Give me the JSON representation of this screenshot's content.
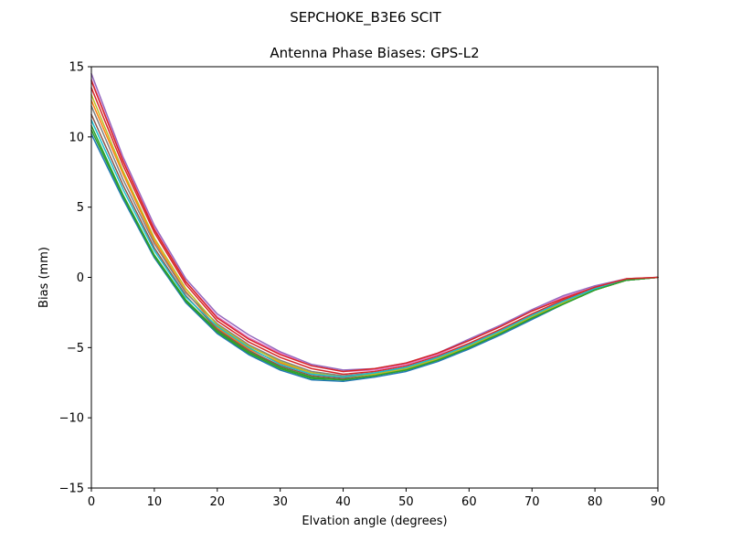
{
  "figure": {
    "suptitle": "SEPCHOKE_B3E6   SCIT"
  },
  "chart_data": {
    "type": "line",
    "title": "Antenna Phase Biases: GPS-L2",
    "xlabel": "Elvation angle (degrees)",
    "ylabel": "Bias (mm)",
    "xlim": [
      0,
      90
    ],
    "ylim": [
      -15,
      15
    ],
    "xticks": [
      0,
      10,
      20,
      30,
      40,
      50,
      60,
      70,
      80,
      90
    ],
    "yticks": [
      -15,
      -10,
      -5,
      0,
      5,
      10,
      15
    ],
    "xtick_labels": [
      "0",
      "10",
      "20",
      "30",
      "40",
      "50",
      "60",
      "70",
      "80",
      "90"
    ],
    "ytick_labels": [
      "−15",
      "−10",
      "−5",
      "0",
      "5",
      "10",
      "15"
    ],
    "grid": false,
    "legend": "none",
    "series_count_note_visible": false,
    "x": [
      0,
      5,
      10,
      15,
      20,
      25,
      30,
      35,
      40,
      45,
      50,
      55,
      60,
      65,
      70,
      75,
      80,
      85,
      90
    ],
    "series": [
      {
        "color": "#1f77b4",
        "values": [
          10.2,
          5.6,
          1.4,
          -1.8,
          -4.0,
          -5.5,
          -6.6,
          -7.3,
          -7.4,
          -7.1,
          -6.7,
          -6.0,
          -5.1,
          -4.1,
          -3.0,
          -1.9,
          -0.9,
          -0.2,
          0.0
        ]
      },
      {
        "color": "#ff7f0e",
        "values": [
          12.6,
          7.4,
          2.6,
          -1.0,
          -3.6,
          -5.1,
          -6.1,
          -6.8,
          -7.1,
          -6.9,
          -6.5,
          -5.8,
          -4.9,
          -3.9,
          -2.8,
          -1.8,
          -0.9,
          -0.2,
          0.0
        ]
      },
      {
        "color": "#2ca02c",
        "values": [
          10.8,
          5.9,
          1.6,
          -1.6,
          -3.8,
          -5.3,
          -6.4,
          -7.1,
          -7.3,
          -7.0,
          -6.6,
          -5.9,
          -5.0,
          -4.0,
          -2.9,
          -1.9,
          -0.9,
          -0.2,
          0.0
        ]
      },
      {
        "color": "#d62728",
        "values": [
          13.5,
          8.0,
          3.2,
          -0.5,
          -3.1,
          -4.6,
          -5.7,
          -6.5,
          -6.9,
          -6.7,
          -6.3,
          -5.6,
          -4.7,
          -3.7,
          -2.6,
          -1.6,
          -0.8,
          -0.2,
          0.0
        ]
      },
      {
        "color": "#9467bd",
        "values": [
          14.5,
          8.6,
          3.7,
          -0.1,
          -2.6,
          -4.1,
          -5.3,
          -6.2,
          -6.6,
          -6.5,
          -6.1,
          -5.4,
          -4.4,
          -3.4,
          -2.3,
          -1.3,
          -0.6,
          -0.1,
          0.0
        ]
      },
      {
        "color": "#8c564b",
        "values": [
          11.6,
          6.6,
          2.1,
          -1.3,
          -3.7,
          -5.2,
          -6.3,
          -7.0,
          -7.2,
          -6.9,
          -6.5,
          -5.8,
          -4.9,
          -3.9,
          -2.8,
          -1.8,
          -0.9,
          -0.2,
          0.0
        ]
      },
      {
        "color": "#e377c2",
        "values": [
          14.1,
          8.4,
          3.5,
          -0.3,
          -2.8,
          -4.3,
          -5.4,
          -6.3,
          -6.7,
          -6.6,
          -6.2,
          -5.5,
          -4.5,
          -3.5,
          -2.4,
          -1.4,
          -0.7,
          -0.1,
          0.0
        ]
      },
      {
        "color": "#7f7f7f",
        "values": [
          12.2,
          7.0,
          2.4,
          -1.1,
          -3.3,
          -4.8,
          -5.9,
          -6.7,
          -7.0,
          -6.8,
          -6.4,
          -5.7,
          -4.8,
          -3.8,
          -2.7,
          -1.7,
          -0.8,
          -0.2,
          0.0
        ]
      },
      {
        "color": "#bcbd22",
        "values": [
          13.0,
          7.6,
          2.8,
          -0.8,
          -3.4,
          -4.9,
          -6.0,
          -6.8,
          -7.1,
          -6.9,
          -6.5,
          -5.8,
          -4.9,
          -3.9,
          -2.8,
          -1.8,
          -0.9,
          -0.2,
          0.0
        ]
      },
      {
        "color": "#17becf",
        "values": [
          11.2,
          6.3,
          1.9,
          -1.4,
          -3.5,
          -5.0,
          -6.2,
          -6.9,
          -7.1,
          -6.8,
          -6.4,
          -5.7,
          -4.8,
          -3.8,
          -2.7,
          -1.7,
          -0.8,
          -0.2,
          0.0
        ]
      },
      {
        "color": "#2ca02c",
        "values": [
          10.5,
          5.8,
          1.5,
          -1.7,
          -3.9,
          -5.4,
          -6.5,
          -7.2,
          -7.3,
          -7.0,
          -6.6,
          -5.9,
          -5.0,
          -4.0,
          -2.9,
          -1.9,
          -0.9,
          -0.2,
          0.0
        ]
      },
      {
        "color": "#d62728",
        "values": [
          14.0,
          8.3,
          3.4,
          -0.3,
          -2.9,
          -4.4,
          -5.5,
          -6.3,
          -6.7,
          -6.5,
          -6.1,
          -5.4,
          -4.5,
          -3.5,
          -2.4,
          -1.5,
          -0.7,
          -0.1,
          0.0
        ]
      }
    ]
  }
}
